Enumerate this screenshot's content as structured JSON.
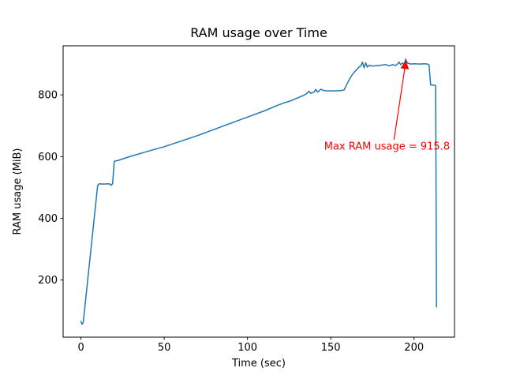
{
  "chart_data": {
    "type": "line",
    "title": "RAM usage over Time",
    "xlabel": "Time (sec)",
    "ylabel": "RAM usage (MiB)",
    "line_color": "#1f77b4",
    "axis_color": "#000000",
    "background": "#ffffff",
    "xlim": [
      -10.7,
      224.3
    ],
    "ylim": [
      15,
      959
    ],
    "xticks": [
      0,
      50,
      100,
      150,
      200
    ],
    "yticks": [
      200,
      400,
      600,
      800
    ],
    "grid": false,
    "legend": null,
    "series": [
      {
        "name": "RAM usage",
        "points": [
          [
            0,
            66
          ],
          [
            0.7,
            57
          ],
          [
            1.4,
            63
          ],
          [
            10,
            505
          ],
          [
            11,
            512
          ],
          [
            13,
            511
          ],
          [
            17,
            512
          ],
          [
            18,
            507
          ],
          [
            19,
            512
          ],
          [
            20,
            585
          ],
          [
            22,
            587
          ],
          [
            30,
            601
          ],
          [
            40,
            617
          ],
          [
            50,
            632
          ],
          [
            60,
            650
          ],
          [
            70,
            668
          ],
          [
            80,
            688
          ],
          [
            90,
            708
          ],
          [
            100,
            728
          ],
          [
            110,
            748
          ],
          [
            118,
            766
          ],
          [
            122,
            774
          ],
          [
            126,
            781
          ],
          [
            130,
            790
          ],
          [
            134,
            799
          ],
          [
            136,
            806
          ],
          [
            137,
            812
          ],
          [
            138,
            805
          ],
          [
            140,
            809
          ],
          [
            141,
            818
          ],
          [
            142,
            809
          ],
          [
            143,
            813
          ],
          [
            144,
            818
          ],
          [
            146,
            814
          ],
          [
            148,
            813
          ],
          [
            152,
            813
          ],
          [
            156,
            814
          ],
          [
            158,
            816
          ],
          [
            160,
            838
          ],
          [
            162,
            858
          ],
          [
            164,
            873
          ],
          [
            166,
            884
          ],
          [
            167,
            891
          ],
          [
            168,
            893
          ],
          [
            169,
            906
          ],
          [
            170,
            888
          ],
          [
            171,
            904
          ],
          [
            172,
            890
          ],
          [
            173,
            896
          ],
          [
            175,
            893
          ],
          [
            178,
            895
          ],
          [
            180,
            896
          ],
          [
            183,
            898
          ],
          [
            185,
            894
          ],
          [
            187,
            898
          ],
          [
            189,
            895
          ],
          [
            190,
            900
          ],
          [
            191,
            906
          ],
          [
            192,
            898
          ],
          [
            193,
            903
          ],
          [
            194,
            899
          ],
          [
            195,
            915.8
          ],
          [
            196,
            903
          ],
          [
            198,
            900
          ],
          [
            200,
            901
          ],
          [
            203,
            900
          ],
          [
            206,
            901
          ],
          [
            208,
            900
          ],
          [
            209,
            897
          ],
          [
            210,
            832
          ],
          [
            212,
            831
          ],
          [
            213,
            830
          ],
          [
            213.5,
            113
          ]
        ]
      }
    ],
    "annotation": {
      "text": "Max RAM usage = 915.8",
      "color": "#ff0000",
      "xy": [
        195,
        915.8
      ],
      "arrow_from": [
        188,
        655
      ],
      "text_xy": [
        146,
        622
      ]
    }
  }
}
